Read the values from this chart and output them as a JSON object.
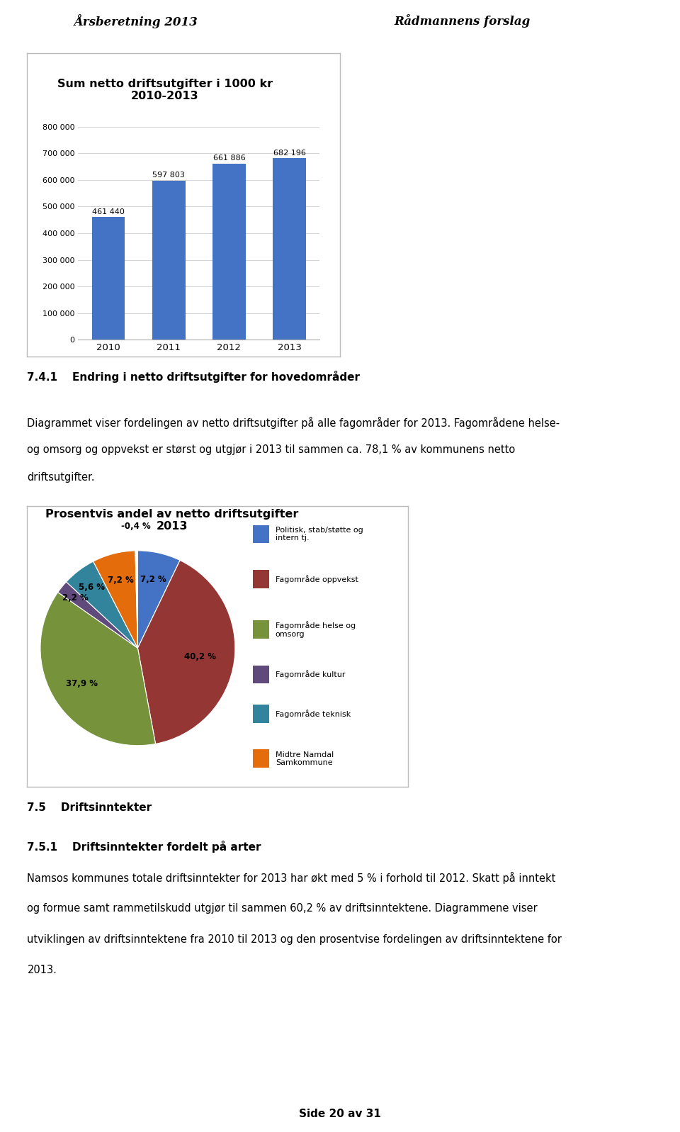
{
  "header_title_left": "Årsberetning 2013",
  "header_title_right": "Rådmannens forslag",
  "bar_chart_title": "Sum netto driftsutgifter i 1000 kr\n2010-2013",
  "bar_years": [
    "2010",
    "2011",
    "2012",
    "2013"
  ],
  "bar_values": [
    461440,
    597803,
    661886,
    682196
  ],
  "bar_value_labels": [
    "461 440",
    "597 803",
    "661 886",
    "682 196"
  ],
  "bar_color": "#4472C4",
  "bar_ylim": [
    0,
    800000
  ],
  "bar_yticks": [
    0,
    100000,
    200000,
    300000,
    400000,
    500000,
    600000,
    700000,
    800000
  ],
  "bar_ytick_labels": [
    "0",
    "100 000",
    "200 000",
    "300 000",
    "400 000",
    "500 000",
    "600 000",
    "700 000",
    "800 000"
  ],
  "section_741_title": "7.4.1    Endring i netto driftsutgifter for hovedområder",
  "section_741_text1": "Diagrammet viser fordelingen av netto driftsutgifter på alle fagområder for 2013. Fagområdene helse-",
  "section_741_text2": "og omsorg og oppvekst er størst og utgjør i 2013 til sammen ca. 78,1 % av kommunens netto",
  "section_741_text3": "driftsutgifter.",
  "pie_chart_title": "Prosentvis andel av netto driftsutgifter\n2013",
  "pie_abs_values": [
    7.2,
    40.2,
    37.9,
    2.2,
    5.6,
    7.2,
    0.4
  ],
  "pie_labels": [
    "7,2 %",
    "40,2 %",
    "37,9 %",
    "2,2 %",
    "5,6 %",
    "7,2 %",
    "-0,4 %"
  ],
  "pie_colors": [
    "#4472C4",
    "#943634",
    "#76933C",
    "#604A7B",
    "#31849B",
    "#E46C0A",
    "#FFFFFF"
  ],
  "pie_legend_labels": [
    "Politisk, stab/støtte og\nintern tj.",
    "Fagområde oppvekst",
    "Fagområde helse og\nomsorg",
    "Fagområde kultur",
    "Fagområde teknisk",
    "Midtre Namdal\nSamkommune"
  ],
  "pie_legend_colors": [
    "#4472C4",
    "#943634",
    "#76933C",
    "#604A7B",
    "#31849B",
    "#E46C0A"
  ],
  "section_75_title": "7.5    Driftsinntekter",
  "section_751_title": "7.5.1    Driftsinntekter fordelt på arter",
  "section_751_text1": "Namsos kommunes totale driftsinntekter for 2013 har økt med 5 % i forhold til 2012. Skatt på inntekt",
  "section_751_text2": "og formue samt rammetilskudd utgjør til sammen 60,2 % av driftsinntektene. Diagrammene viser",
  "section_751_text3": "utviklingen av driftsinntektene fra 2010 til 2013 og den prosentvise fordelingen av driftsinntektene for",
  "section_751_text4": "2013.",
  "footer_text": "Side 20 av 31",
  "bg_color": "#FFFFFF"
}
